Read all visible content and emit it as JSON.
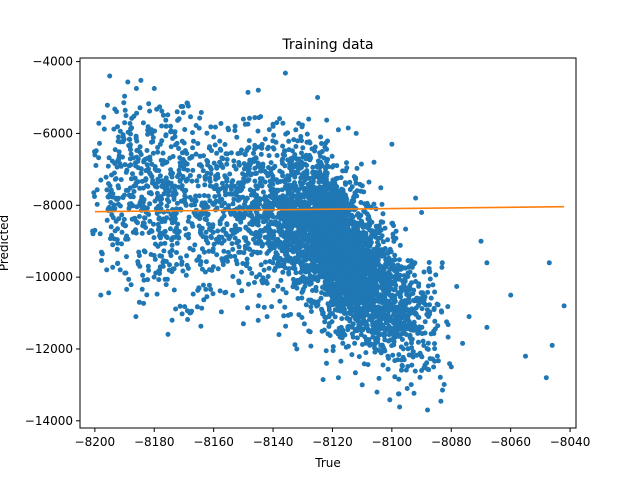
{
  "chart_data": {
    "type": "scatter",
    "title": "Training data",
    "xlabel": "True",
    "ylabel": "Predicted",
    "xlim": [
      -8205,
      -8038
    ],
    "ylim": [
      -14200,
      -3900
    ],
    "xticks": [
      -8200,
      -8180,
      -8160,
      -8140,
      -8120,
      -8100,
      -8080,
      -8060,
      -8040
    ],
    "yticks": [
      -14000,
      -12000,
      -10000,
      -8000,
      -6000,
      -4000
    ],
    "grid": false,
    "colors": {
      "scatter": "#1f77b4",
      "fit_line": "#ff7f0e"
    },
    "series": [
      {
        "kind": "scatter",
        "points": [
          [
            -8195,
            -4400
          ],
          [
            -8186,
            -4750
          ],
          [
            -8180,
            -4750
          ],
          [
            -8125,
            -5000
          ],
          [
            -8197,
            -5550
          ],
          [
            -8190,
            -5700
          ],
          [
            -8176,
            -5800
          ],
          [
            -8150,
            -5600
          ],
          [
            -8140,
            -5800
          ],
          [
            -8128,
            -5600
          ],
          [
            -8200,
            -6600
          ],
          [
            -8188,
            -6450
          ],
          [
            -8170,
            -6900
          ],
          [
            -8160,
            -6100
          ],
          [
            -8148,
            -6200
          ],
          [
            -8136,
            -6900
          ],
          [
            -8198,
            -7300
          ],
          [
            -8193,
            -7800
          ],
          [
            -8183,
            -8100
          ],
          [
            -8176,
            -7600
          ],
          [
            -8165,
            -8300
          ],
          [
            -8158,
            -7900
          ],
          [
            -8200,
            -8700
          ],
          [
            -8194,
            -9100
          ],
          [
            -8185,
            -9400
          ],
          [
            -8178,
            -8800
          ],
          [
            -8168,
            -9200
          ],
          [
            -8157,
            -8700
          ],
          [
            -8198,
            -10500
          ],
          [
            -8185,
            -10700
          ],
          [
            -8174,
            -11200
          ],
          [
            -8168,
            -11000
          ],
          [
            -8196,
            -9800
          ],
          [
            -8182,
            -9700
          ],
          [
            -8165,
            -10300
          ],
          [
            -8150,
            -11300
          ],
          [
            -8145,
            -10800
          ],
          [
            -8142,
            -11100
          ],
          [
            -8138,
            -11600
          ],
          [
            -8132,
            -12000
          ],
          [
            -8128,
            -11500
          ],
          [
            -8122,
            -12400
          ],
          [
            -8118,
            -12800
          ],
          [
            -8110,
            -13000
          ],
          [
            -8105,
            -13200
          ],
          [
            -8098,
            -12300
          ],
          [
            -8090,
            -12600
          ],
          [
            -8088,
            -13700
          ],
          [
            -8080,
            -12500
          ],
          [
            -8074,
            -11100
          ],
          [
            -8068,
            -11400
          ],
          [
            -8070,
            -9000
          ],
          [
            -8060,
            -10500
          ],
          [
            -8055,
            -12200
          ],
          [
            -8048,
            -12800
          ],
          [
            -8046,
            -11900
          ],
          [
            -8042,
            -10800
          ],
          [
            -8047,
            -9600
          ],
          [
            -8068,
            -9600
          ],
          [
            -8083,
            -9600
          ],
          [
            -8090,
            -8200
          ],
          [
            -8092,
            -7800
          ],
          [
            -8100,
            -6300
          ],
          [
            -8106,
            -6800
          ],
          [
            -8112,
            -6000
          ],
          [
            -8118,
            -5900
          ],
          [
            -8124,
            -6100
          ],
          [
            -8130,
            -6400
          ]
        ],
        "clusters": [
          {
            "cx": -8118,
            "cy": -9200,
            "sx": 9,
            "sy": 1200,
            "n": 2600,
            "corr": -0.55
          },
          {
            "cx": -8140,
            "cy": -8400,
            "sx": 12,
            "sy": 1100,
            "n": 900,
            "corr": -0.3
          },
          {
            "cx": -8178,
            "cy": -7800,
            "sx": 13,
            "sy": 1300,
            "n": 700,
            "corr": -0.2
          },
          {
            "cx": -8098,
            "cy": -10800,
            "sx": 8,
            "sy": 900,
            "n": 500,
            "corr": -0.4
          }
        ]
      },
      {
        "kind": "line",
        "points": [
          [
            -8200,
            -8180
          ],
          [
            -8042,
            -8040
          ]
        ]
      }
    ]
  }
}
